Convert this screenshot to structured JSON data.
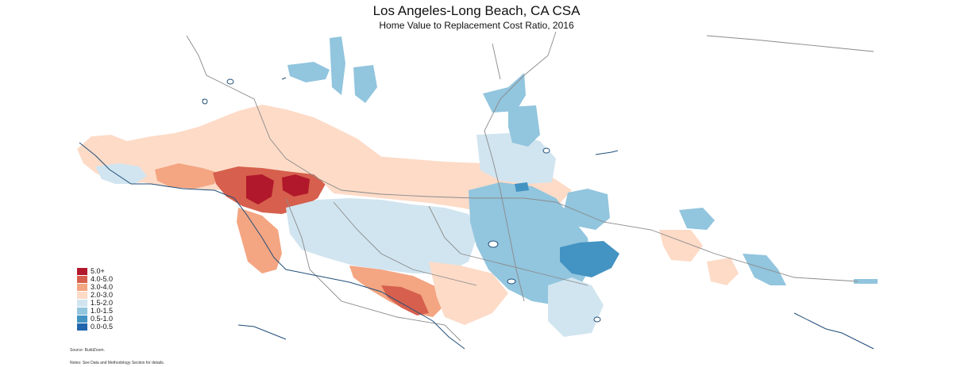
{
  "title": "Los Angeles-Long Beach, CA CSA",
  "subtitle": "Home Value to Replacement Cost Ratio, 2016",
  "legend": {
    "items": [
      {
        "label": "5.0+",
        "color": "#b2182b"
      },
      {
        "label": "4.0-5.0",
        "color": "#d6604d"
      },
      {
        "label": "3.0-4.0",
        "color": "#f4a582"
      },
      {
        "label": "2.0-3.0",
        "color": "#fddbc7"
      },
      {
        "label": "1.5-2.0",
        "color": "#d1e5f0"
      },
      {
        "label": "1.0-1.5",
        "color": "#92c5de"
      },
      {
        "label": "0.5-1.0",
        "color": "#4393c3"
      },
      {
        "label": "0.0-0.5",
        "color": "#2166ac"
      }
    ]
  },
  "source": "Source: BuildZoom.",
  "notes": "Notes: See Data and Methodology Section for details."
}
